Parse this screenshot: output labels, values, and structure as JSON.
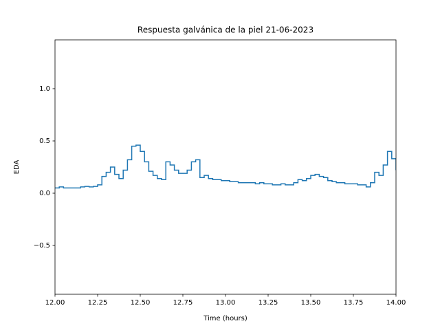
{
  "chart_data": {
    "type": "line",
    "step": "post",
    "title": "Respuesta galvánica de la piel 21-06-2023",
    "xlabel": "Time (hours)",
    "ylabel": "EDA",
    "x": [
      12.0,
      12.025,
      12.05,
      12.075,
      12.1,
      12.125,
      12.15,
      12.175,
      12.2,
      12.225,
      12.25,
      12.275,
      12.3,
      12.325,
      12.35,
      12.375,
      12.4,
      12.425,
      12.45,
      12.475,
      12.5,
      12.525,
      12.55,
      12.575,
      12.6,
      12.625,
      12.65,
      12.675,
      12.7,
      12.725,
      12.75,
      12.775,
      12.8,
      12.825,
      12.85,
      12.875,
      12.9,
      12.925,
      12.95,
      12.975,
      13.0,
      13.025,
      13.05,
      13.075,
      13.1,
      13.125,
      13.15,
      13.175,
      13.2,
      13.225,
      13.25,
      13.275,
      13.3,
      13.325,
      13.35,
      13.375,
      13.4,
      13.425,
      13.45,
      13.475,
      13.5,
      13.525,
      13.55,
      13.575,
      13.6,
      13.625,
      13.65,
      13.675,
      13.7,
      13.725,
      13.75,
      13.775,
      13.8,
      13.825,
      13.85,
      13.875,
      13.9,
      13.925,
      13.95,
      13.975,
      14.0
    ],
    "series": [
      {
        "color": "#1f77b4",
        "values": [
          0.05,
          0.06,
          0.05,
          0.05,
          0.05,
          0.05,
          0.06,
          0.065,
          0.06,
          0.065,
          0.08,
          0.16,
          0.2,
          0.25,
          0.18,
          0.14,
          0.22,
          0.32,
          0.45,
          0.46,
          0.4,
          0.3,
          0.21,
          0.17,
          0.14,
          0.13,
          0.3,
          0.27,
          0.22,
          0.19,
          0.19,
          0.22,
          0.3,
          0.32,
          0.15,
          0.17,
          0.14,
          0.13,
          0.13,
          0.12,
          0.12,
          0.11,
          0.11,
          0.1,
          0.1,
          0.1,
          0.1,
          0.09,
          0.1,
          0.09,
          0.09,
          0.08,
          0.08,
          0.09,
          0.08,
          0.08,
          0.1,
          0.13,
          0.12,
          0.14,
          0.17,
          0.18,
          0.16,
          0.15,
          0.12,
          0.11,
          0.1,
          0.1,
          0.09,
          0.09,
          0.09,
          0.08,
          0.08,
          0.06,
          0.1,
          0.2,
          0.17,
          0.27,
          0.4,
          0.33,
          0.22
        ]
      }
    ],
    "xlim": [
      12.0,
      14.0
    ],
    "ylim": [
      -0.967,
      1.467
    ],
    "xticks": [
      {
        "value": 12.0,
        "label": "12.00"
      },
      {
        "value": 12.25,
        "label": "12.25"
      },
      {
        "value": 12.5,
        "label": "12.50"
      },
      {
        "value": 12.75,
        "label": "12.75"
      },
      {
        "value": 13.0,
        "label": "13.00"
      },
      {
        "value": 13.25,
        "label": "13.25"
      },
      {
        "value": 13.5,
        "label": "13.50"
      },
      {
        "value": 13.75,
        "label": "13.75"
      },
      {
        "value": 14.0,
        "label": "14.00"
      }
    ],
    "yticks": [
      {
        "value": -0.5,
        "label": "−0.5"
      },
      {
        "value": 0.0,
        "label": "0.0"
      },
      {
        "value": 0.5,
        "label": "0.5"
      },
      {
        "value": 1.0,
        "label": "1.0"
      }
    ],
    "grid": false
  }
}
